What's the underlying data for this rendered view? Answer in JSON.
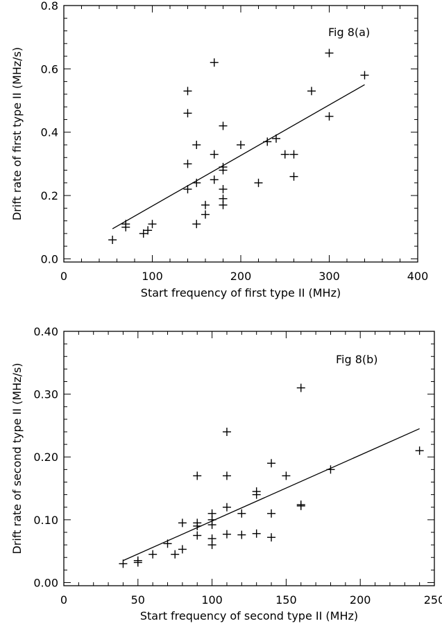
{
  "chart_data": [
    {
      "type": "scatter",
      "annotation": "Fig 8(a)",
      "xlabel": "Start frequency of first type II (MHz)",
      "ylabel": "Drift rate of first type II (MHz/s)",
      "xlim": [
        0,
        400
      ],
      "ylim": [
        -0.01,
        0.8
      ],
      "xticks": [
        0,
        100,
        200,
        300,
        400
      ],
      "xtick_labels": [
        "0",
        "100",
        "200",
        "300",
        "400"
      ],
      "yticks": [
        0.0,
        0.2,
        0.4,
        0.6,
        0.8
      ],
      "ytick_labels": [
        "0.0",
        "0.2",
        "0.4",
        "0.6",
        "0.8"
      ],
      "grid": false,
      "marker": "plus",
      "points": [
        {
          "x": 55,
          "y": 0.06
        },
        {
          "x": 70,
          "y": 0.11
        },
        {
          "x": 70,
          "y": 0.1
        },
        {
          "x": 90,
          "y": 0.08
        },
        {
          "x": 95,
          "y": 0.09
        },
        {
          "x": 100,
          "y": 0.11
        },
        {
          "x": 140,
          "y": 0.53
        },
        {
          "x": 140,
          "y": 0.46
        },
        {
          "x": 140,
          "y": 0.3
        },
        {
          "x": 140,
          "y": 0.22
        },
        {
          "x": 150,
          "y": 0.36
        },
        {
          "x": 150,
          "y": 0.24
        },
        {
          "x": 150,
          "y": 0.11
        },
        {
          "x": 160,
          "y": 0.17
        },
        {
          "x": 160,
          "y": 0.14
        },
        {
          "x": 170,
          "y": 0.62
        },
        {
          "x": 170,
          "y": 0.33
        },
        {
          "x": 170,
          "y": 0.25
        },
        {
          "x": 180,
          "y": 0.42
        },
        {
          "x": 180,
          "y": 0.29
        },
        {
          "x": 180,
          "y": 0.28
        },
        {
          "x": 180,
          "y": 0.22
        },
        {
          "x": 180,
          "y": 0.19
        },
        {
          "x": 180,
          "y": 0.17
        },
        {
          "x": 200,
          "y": 0.36
        },
        {
          "x": 220,
          "y": 0.24
        },
        {
          "x": 230,
          "y": 0.37
        },
        {
          "x": 240,
          "y": 0.38
        },
        {
          "x": 250,
          "y": 0.33
        },
        {
          "x": 260,
          "y": 0.33
        },
        {
          "x": 260,
          "y": 0.26
        },
        {
          "x": 280,
          "y": 0.53
        },
        {
          "x": 300,
          "y": 0.65
        },
        {
          "x": 300,
          "y": 0.45
        },
        {
          "x": 340,
          "y": 0.58
        }
      ],
      "fit_line": {
        "x": [
          55,
          340
        ],
        "y": [
          0.095,
          0.55
        ]
      }
    },
    {
      "type": "scatter",
      "annotation": "Fig 8(b)",
      "xlabel": "Start frequency of second type II (MHz)",
      "ylabel": "Drift rate of second type II (MHz/s)",
      "xlim": [
        0,
        250
      ],
      "ylim": [
        -0.005,
        0.4
      ],
      "xticks": [
        0,
        50,
        100,
        150,
        200,
        250
      ],
      "xtick_labels": [
        "0",
        "50",
        "100",
        "150",
        "200",
        "250"
      ],
      "yticks": [
        0.0,
        0.1,
        0.2,
        0.3,
        0.4
      ],
      "ytick_labels": [
        "0.00",
        "0.10",
        "0.20",
        "0.30",
        "0.40"
      ],
      "grid": false,
      "marker": "plus",
      "points": [
        {
          "x": 40,
          "y": 0.03
        },
        {
          "x": 50,
          "y": 0.035
        },
        {
          "x": 50,
          "y": 0.032
        },
        {
          "x": 60,
          "y": 0.045
        },
        {
          "x": 70,
          "y": 0.062
        },
        {
          "x": 75,
          "y": 0.045
        },
        {
          "x": 80,
          "y": 0.095
        },
        {
          "x": 80,
          "y": 0.053
        },
        {
          "x": 90,
          "y": 0.17
        },
        {
          "x": 90,
          "y": 0.095
        },
        {
          "x": 90,
          "y": 0.09
        },
        {
          "x": 90,
          "y": 0.075
        },
        {
          "x": 100,
          "y": 0.11
        },
        {
          "x": 100,
          "y": 0.1
        },
        {
          "x": 100,
          "y": 0.092
        },
        {
          "x": 100,
          "y": 0.07
        },
        {
          "x": 100,
          "y": 0.06
        },
        {
          "x": 110,
          "y": 0.24
        },
        {
          "x": 110,
          "y": 0.17
        },
        {
          "x": 110,
          "y": 0.12
        },
        {
          "x": 110,
          "y": 0.077
        },
        {
          "x": 120,
          "y": 0.11
        },
        {
          "x": 120,
          "y": 0.076
        },
        {
          "x": 130,
          "y": 0.145
        },
        {
          "x": 130,
          "y": 0.14
        },
        {
          "x": 130,
          "y": 0.078
        },
        {
          "x": 140,
          "y": 0.19
        },
        {
          "x": 140,
          "y": 0.11
        },
        {
          "x": 140,
          "y": 0.072
        },
        {
          "x": 150,
          "y": 0.17
        },
        {
          "x": 160,
          "y": 0.31
        },
        {
          "x": 160,
          "y": 0.124
        },
        {
          "x": 160,
          "y": 0.122
        },
        {
          "x": 180,
          "y": 0.18
        },
        {
          "x": 240,
          "y": 0.21
        }
      ],
      "fit_line": {
        "x": [
          40,
          240
        ],
        "y": [
          0.035,
          0.245
        ]
      }
    }
  ]
}
